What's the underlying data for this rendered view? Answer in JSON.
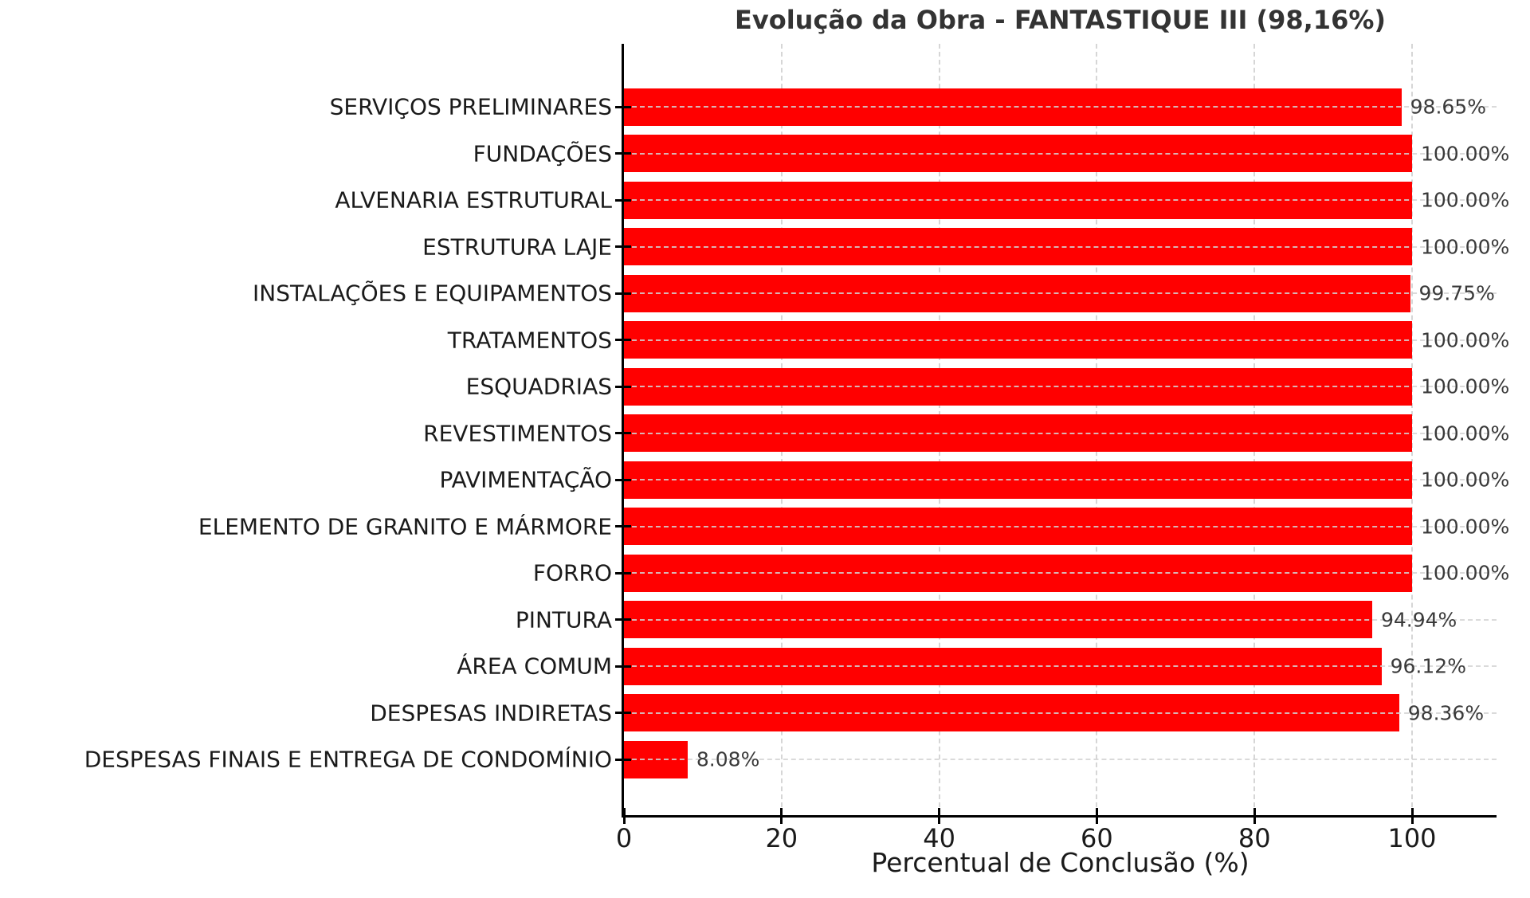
{
  "title": "Evolução da Obra - FANTASTIQUE III (98,16%)",
  "overall_completion": "98,16%",
  "colors": {
    "bar": "#ff0000",
    "title": "#333333",
    "text": "#1a1a1a",
    "value_text": "#3a3a3a",
    "grid": "#d3d3d3",
    "axis": "#000000",
    "background": "#ffffff"
  },
  "chart_data": {
    "type": "bar",
    "orientation": "horizontal",
    "title": "Evolução da Obra - FANTASTIQUE III (98,16%)",
    "xlabel": "Percentual de Conclusão (%)",
    "ylabel": "",
    "xlim": [
      0,
      110.7
    ],
    "x_ticks": [
      0,
      20,
      40,
      60,
      80,
      100
    ],
    "grid": "dashed",
    "legend": "none",
    "bar_color": "#ff0000",
    "categories": [
      "SERVIÇOS PRELIMINARES",
      "FUNDAÇÕES",
      "ALVENARIA ESTRUTURAL",
      "ESTRUTURA LAJE",
      "INSTALAÇÕES E EQUIPAMENTOS",
      "TRATAMENTOS",
      "ESQUADRIAS",
      "REVESTIMENTOS",
      "PAVIMENTAÇÃO",
      "ELEMENTO DE GRANITO E MÁRMORE",
      "FORRO",
      "PINTURA",
      "ÁREA COMUM",
      "DESPESAS INDIRETAS",
      "DESPESAS FINAIS E ENTREGA DE CONDOMÍNIO"
    ],
    "values": [
      98.65,
      100.0,
      100.0,
      100.0,
      99.75,
      100.0,
      100.0,
      100.0,
      100.0,
      100.0,
      100.0,
      94.94,
      96.12,
      98.36,
      8.08
    ],
    "value_labels": [
      "98.65%",
      "100.00%",
      "100.00%",
      "100.00%",
      "99.75%",
      "100.00%",
      "100.00%",
      "100.00%",
      "100.00%",
      "100.00%",
      "100.00%",
      "94.94%",
      "96.12%",
      "98.36%",
      "8.08%"
    ]
  }
}
